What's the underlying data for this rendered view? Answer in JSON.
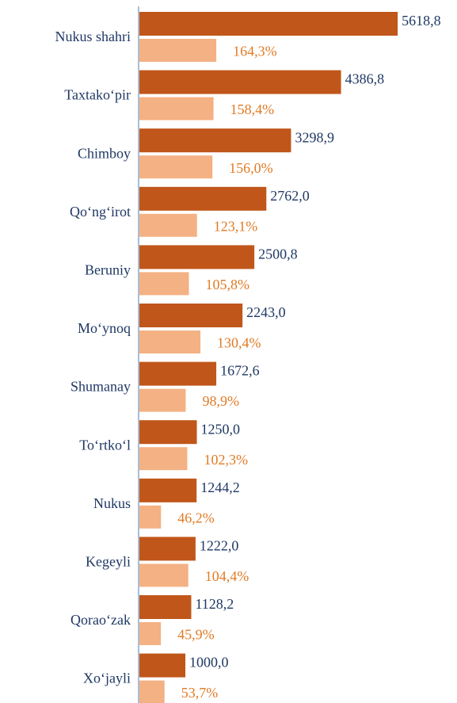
{
  "chart_data": {
    "type": "bar",
    "orientation": "horizontal",
    "categories": [
      "Nukus shahri",
      "Taxtako‘pir",
      "Chimboy",
      "Qo‘ng‘irot",
      "Beruniy",
      "Mo‘ynoq",
      "Shumanay",
      "To‘rtko‘l",
      "Nukus",
      "Kegeyli",
      "Qorao‘zak",
      "Xo‘jayli"
    ],
    "series": [
      {
        "color": "#c0561a",
        "label_color": "#1f3864",
        "values": [
          5618.8,
          4386.8,
          3298.9,
          2762.0,
          2500.8,
          2243.0,
          1672.6,
          1250.0,
          1244.2,
          1222.0,
          1128.2,
          1000.0
        ],
        "value_labels": [
          "5618,8",
          "4386,8",
          "3298,9",
          "2762,0",
          "2500,8",
          "2243,0",
          "1672,6",
          "1250,0",
          "1244,2",
          "1222,0",
          "1128,2",
          "1000,0"
        ]
      },
      {
        "color": "#f4b183",
        "label_color": "#e07b25",
        "axis": "x2",
        "values": [
          164.3,
          158.4,
          156.0,
          123.1,
          105.8,
          130.4,
          98.9,
          102.3,
          46.2,
          104.4,
          45.9,
          53.7
        ],
        "value_labels": [
          "164,3%",
          "158,4%",
          "156,0%",
          "123,1%",
          "105,8%",
          "130,4%",
          "98,9%",
          "102,3%",
          "46,2%",
          "104,4%",
          "45,9%",
          "53,7%"
        ]
      }
    ],
    "xlim": [
      0,
      5600
    ],
    "x2lim": [
      0,
      550
    ]
  }
}
